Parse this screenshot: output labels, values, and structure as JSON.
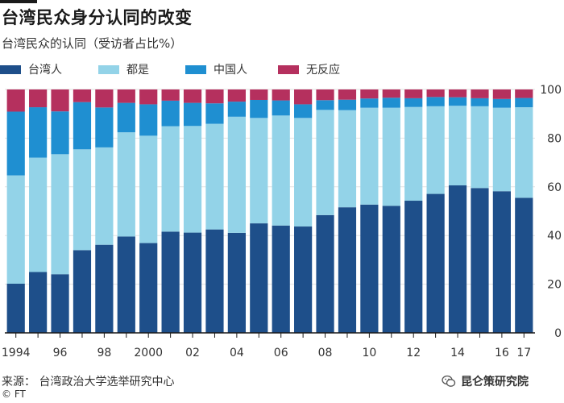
{
  "title": "台湾民众身分认同的改变",
  "subtitle": "台湾民众的认同（受访者占比%）",
  "source": "来源： 台湾政治大学选举研究中心",
  "copyright": "© FT",
  "watermark": "昆仑策研究院",
  "colors": {
    "taiwanese": "#1e4f8a",
    "both": "#93d3e8",
    "chinese": "#1f8fd1",
    "no_response": "#b5305e",
    "gridline": "#e2e2e2",
    "axis": "#1a1a1a"
  },
  "chart_data": {
    "type": "bar",
    "stacked": true,
    "categories": [
      "1994",
      "1995",
      "1996",
      "1997",
      "1998",
      "1999",
      "2000",
      "2001",
      "2002",
      "2003",
      "2004",
      "2005",
      "2006",
      "2007",
      "2008",
      "2009",
      "2010",
      "2011",
      "2012",
      "2013",
      "2014",
      "2015",
      "2016",
      "2017"
    ],
    "x_tick_labels": [
      "1994",
      "",
      "96",
      "",
      "98",
      "",
      "2000",
      "",
      "02",
      "",
      "04",
      "",
      "06",
      "",
      "08",
      "",
      "10",
      "",
      "12",
      "",
      "14",
      "",
      "16",
      "17"
    ],
    "series": [
      {
        "name": "台湾人",
        "color_key": "taiwanese",
        "values": [
          20.2,
          25.0,
          24.1,
          34.0,
          36.2,
          39.6,
          36.9,
          41.6,
          41.2,
          42.5,
          41.1,
          45.0,
          44.1,
          43.7,
          48.4,
          51.6,
          52.7,
          52.2,
          54.3,
          57.1,
          60.6,
          59.5,
          58.2,
          55.5
        ]
      },
      {
        "name": "都是",
        "color_key": "both",
        "values": [
          44.5,
          47.0,
          49.3,
          41.4,
          40.0,
          42.8,
          44.1,
          43.3,
          43.8,
          43.4,
          47.7,
          43.3,
          45.2,
          44.6,
          43.2,
          39.9,
          39.8,
          40.3,
          38.5,
          36.0,
          32.7,
          33.6,
          34.3,
          37.2
        ]
      },
      {
        "name": "中国人",
        "color_key": "chinese",
        "values": [
          26.2,
          20.7,
          17.6,
          19.4,
          16.4,
          12.1,
          12.9,
          10.5,
          9.5,
          8.4,
          6.2,
          7.4,
          6.2,
          5.6,
          4.0,
          4.3,
          3.8,
          4.1,
          3.6,
          3.8,
          3.5,
          3.3,
          3.6,
          3.8
        ]
      },
      {
        "name": "无反应",
        "color_key": "no_response",
        "values": [
          9.1,
          7.3,
          9.0,
          5.2,
          7.4,
          5.5,
          6.1,
          4.6,
          5.5,
          5.7,
          5.0,
          4.3,
          4.5,
          6.1,
          4.4,
          4.2,
          3.7,
          3.4,
          3.6,
          3.1,
          3.2,
          3.6,
          3.9,
          3.5
        ]
      }
    ],
    "y_axis_side": "right",
    "ylim": [
      0,
      100
    ],
    "yticks": [
      0,
      20,
      40,
      60,
      80,
      100
    ],
    "grid": true,
    "legend_position": "top-left"
  }
}
